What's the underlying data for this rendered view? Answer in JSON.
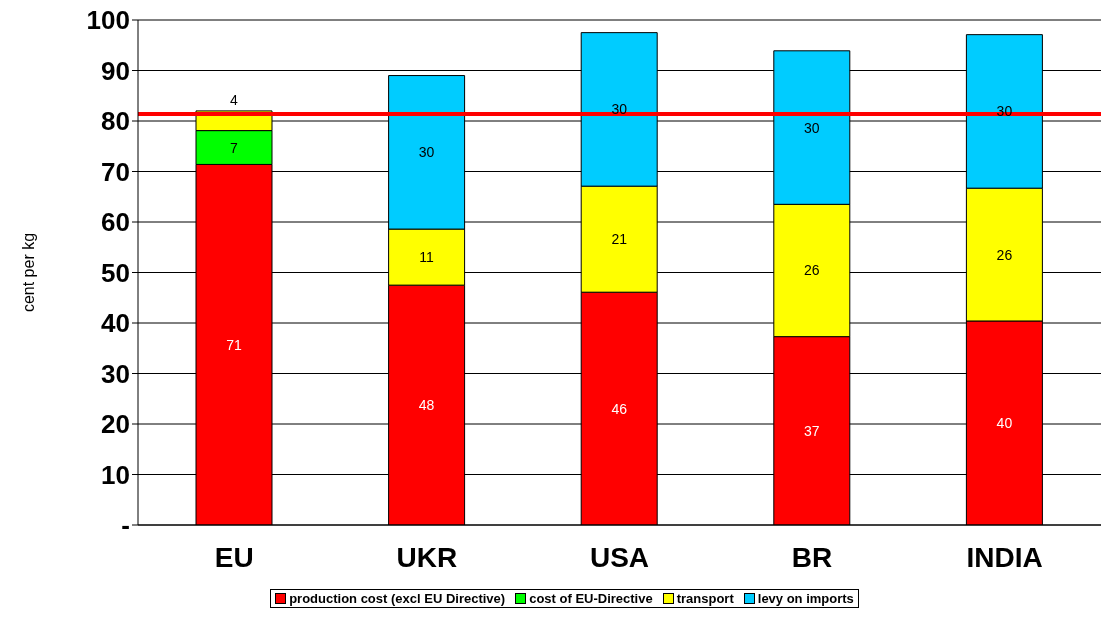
{
  "chart_data": {
    "type": "bar",
    "stacked": true,
    "ylabel": "cent per kg",
    "categories": [
      "EU",
      "UKR",
      "USA",
      "BR",
      "INDIA"
    ],
    "series": [
      {
        "name": "production cost (excl EU Directive)",
        "color": "#ff0000",
        "values": [
          71.4,
          47.5,
          46.1,
          37.3,
          40.4
        ],
        "value_labels": [
          "71",
          "48",
          "46",
          "37",
          "40"
        ]
      },
      {
        "name": "cost of EU-Directive",
        "color": "#00ff00",
        "values": [
          6.7,
          null,
          null,
          null,
          null
        ],
        "value_labels": [
          "7",
          null,
          null,
          null,
          null
        ]
      },
      {
        "name": "transport",
        "color": "#ffff00",
        "values": [
          3.9,
          11.1,
          21,
          26.2,
          26.3
        ],
        "value_labels": [
          "4",
          "11",
          "21",
          "26",
          "26"
        ]
      },
      {
        "name": "levy on imports",
        "color": "#00ccff",
        "values": [
          null,
          30.4,
          30.4,
          30.4,
          30.4
        ],
        "value_labels": [
          null,
          "30",
          "30",
          "30",
          "30"
        ]
      }
    ],
    "ylim": [
      0,
      100
    ],
    "yticks": [
      {
        "value": 0,
        "label": "-"
      },
      10,
      20,
      30,
      40,
      50,
      60,
      70,
      80,
      90,
      100
    ],
    "grid": "y",
    "legend": "bottom",
    "ref_lines": [
      {
        "axis": "y",
        "value": 81.4,
        "color": "#ff0000"
      }
    ]
  }
}
